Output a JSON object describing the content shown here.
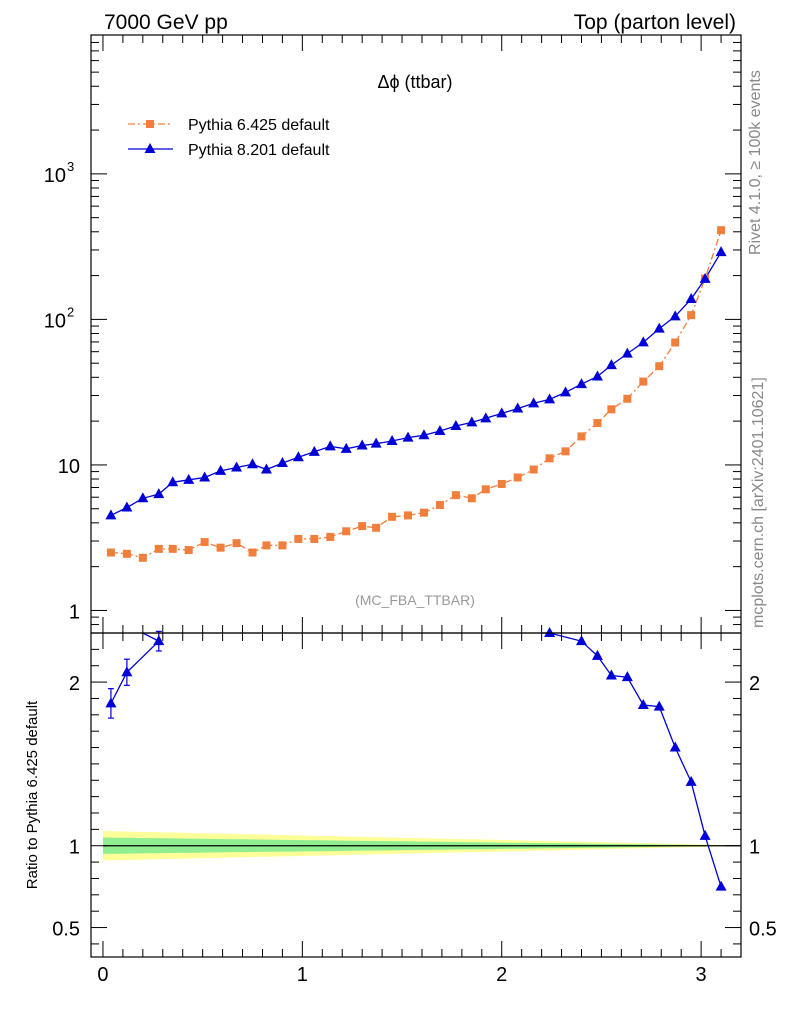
{
  "header": {
    "left": "7000 GeV pp",
    "right": "Top (parton level)"
  },
  "side_labels": {
    "rivet": "Rivet 4.1.0, ≥ 100k events",
    "mcplots": "mcplots.cern.ch [arXiv:2401.10621]"
  },
  "chart_data": {
    "type": "line",
    "title": "Δϕ (ttbar)",
    "analysis_label": "(MC_FBA_TTBAR)",
    "xlim": [
      -0.06,
      3.2
    ],
    "x_ticks": [
      0,
      1,
      2,
      3
    ],
    "main_panel": {
      "yscale": "log",
      "ylim": [
        0.7,
        9000
      ],
      "y_ticks": [
        {
          "value": 1,
          "label": "1"
        },
        {
          "value": 10,
          "label": "10"
        },
        {
          "value": 100,
          "label": "10",
          "exp": "2"
        },
        {
          "value": 1000,
          "label": "10",
          "exp": "3"
        }
      ]
    },
    "ratio_panel": {
      "ylabel": "Ratio to Pythia 6.425 default",
      "ylim": [
        0.32,
        2.3
      ],
      "y_ticks": [
        {
          "value": 0.5,
          "label": "0.5"
        },
        {
          "value": 1,
          "label": "1"
        },
        {
          "value": 2,
          "label": "2"
        }
      ],
      "reference_line": 1,
      "band_yellow": {
        "x": [
          0,
          3.14
        ],
        "half_width_start": 0.09,
        "half_width_end": 0.004
      },
      "band_green": {
        "x": [
          0,
          3.14
        ],
        "half_width_start": 0.05,
        "half_width_end": 0.002
      }
    },
    "x": [
      0.04,
      0.12,
      0.2,
      0.28,
      0.35,
      0.43,
      0.51,
      0.59,
      0.67,
      0.75,
      0.82,
      0.9,
      0.98,
      1.06,
      1.14,
      1.22,
      1.3,
      1.37,
      1.45,
      1.53,
      1.61,
      1.69,
      1.77,
      1.85,
      1.92,
      2.0,
      2.08,
      2.16,
      2.24,
      2.32,
      2.4,
      2.48,
      2.55,
      2.63,
      2.71,
      2.79,
      2.87,
      2.95,
      3.02,
      3.1
    ],
    "series": [
      {
        "name": "Pythia 6.425 default",
        "color": "#f07e3c",
        "marker": "square",
        "line": "dashdot",
        "values": [
          2.5,
          2.45,
          2.3,
          2.65,
          2.65,
          2.6,
          2.95,
          2.7,
          2.9,
          2.5,
          2.8,
          2.8,
          3.1,
          3.1,
          3.2,
          3.5,
          3.8,
          3.7,
          4.4,
          4.5,
          4.7,
          5.3,
          6.2,
          5.9,
          6.8,
          7.4,
          8.2,
          9.3,
          11.1,
          12.4,
          15.7,
          19.4,
          24.1,
          28.5,
          37.4,
          47.7,
          69.4,
          107,
          191,
          410
        ]
      },
      {
        "name": "Pythia 8.201 default",
        "color": "#0000d7",
        "marker": "triangle",
        "line": "solid",
        "values": [
          4.5,
          5.1,
          5.9,
          6.3,
          7.6,
          7.9,
          8.2,
          9.1,
          9.6,
          10.1,
          9.3,
          10.3,
          11.3,
          12.3,
          13.4,
          12.9,
          13.6,
          14.0,
          14.6,
          15.4,
          16.0,
          17.1,
          18.5,
          19.6,
          20.9,
          22.6,
          24.4,
          26.5,
          28.2,
          31.5,
          35.9,
          40.5,
          48.5,
          58.2,
          69.5,
          86.5,
          105,
          138,
          190,
          290
        ]
      }
    ],
    "ratio": {
      "name": "Pythia 8.201 default / Pythia 6.425 default",
      "x": [
        0.04,
        0.12,
        0.28,
        2.24,
        2.4,
        2.48,
        2.55,
        2.63,
        2.71,
        2.79,
        2.87,
        2.95,
        3.02,
        3.1
      ],
      "values": [
        1.87,
        2.06,
        2.25,
        2.3,
        2.25,
        2.16,
        2.04,
        2.03,
        1.86,
        1.85,
        1.6,
        1.39,
        1.06,
        0.75
      ],
      "errors": [
        0.09,
        0.08,
        0.06,
        0,
        0,
        0,
        0,
        0,
        0,
        0,
        0,
        0,
        0,
        0
      ],
      "line_to_top_from": [
        0.2,
        2.2
      ]
    }
  }
}
